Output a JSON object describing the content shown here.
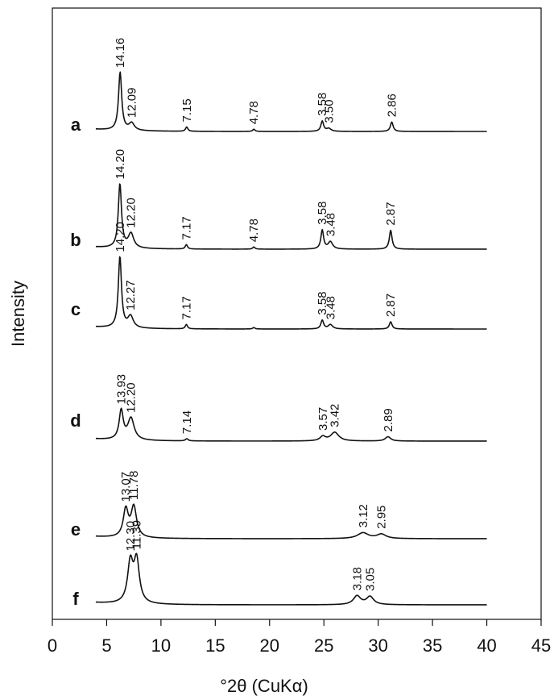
{
  "chart_data": {
    "type": "line",
    "title": "",
    "xlabel": "°2θ (CuKα)",
    "ylabel": "Intensity",
    "xlim": [
      0,
      45
    ],
    "xticks": [
      0,
      5,
      10,
      15,
      20,
      25,
      30,
      35,
      40,
      45
    ],
    "x_range_measured": [
      4,
      40
    ],
    "grid": false,
    "legend": "none",
    "stacked_offset": true,
    "series": [
      {
        "name": "a",
        "baseline": 0,
        "peaks": [
          {
            "two_theta": 6.24,
            "height": 80,
            "width": 0.35,
            "label": "14.16"
          },
          {
            "two_theta": 7.3,
            "height": 10,
            "width": 0.6,
            "label": "12.09"
          },
          {
            "two_theta": 12.37,
            "height": 6,
            "width": 0.25,
            "label": "7.15"
          },
          {
            "two_theta": 18.55,
            "height": 3,
            "width": 0.25,
            "label": "4.78"
          },
          {
            "two_theta": 24.85,
            "height": 14,
            "width": 0.3,
            "label": "3.58"
          },
          {
            "two_theta": 25.45,
            "height": 4,
            "width": 0.5,
            "label": "3.50"
          },
          {
            "two_theta": 31.25,
            "height": 13,
            "width": 0.3,
            "label": "2.86"
          }
        ]
      },
      {
        "name": "b",
        "baseline": 0,
        "peaks": [
          {
            "two_theta": 6.22,
            "height": 88,
            "width": 0.35,
            "label": "14.20"
          },
          {
            "two_theta": 7.24,
            "height": 20,
            "width": 0.6,
            "label": "12.20"
          },
          {
            "two_theta": 12.34,
            "height": 6,
            "width": 0.25,
            "label": "7.17"
          },
          {
            "two_theta": 18.55,
            "height": 3,
            "width": 0.25,
            "label": "4.78"
          },
          {
            "two_theta": 24.85,
            "height": 26,
            "width": 0.3,
            "label": "3.58"
          },
          {
            "two_theta": 25.6,
            "height": 10,
            "width": 0.5,
            "label": "3.48"
          },
          {
            "two_theta": 31.15,
            "height": 26,
            "width": 0.3,
            "label": "2.87"
          }
        ]
      },
      {
        "name": "c",
        "baseline": 0,
        "peaks": [
          {
            "two_theta": 6.22,
            "height": 98,
            "width": 0.35,
            "label": "14.20"
          },
          {
            "two_theta": 7.2,
            "height": 16,
            "width": 0.6,
            "label": "12.27"
          },
          {
            "two_theta": 12.34,
            "height": 6,
            "width": 0.25,
            "label": "7.17"
          },
          {
            "two_theta": 18.55,
            "height": 2,
            "width": 0.25,
            "label": ""
          },
          {
            "two_theta": 24.85,
            "height": 12,
            "width": 0.3,
            "label": "3.58"
          },
          {
            "two_theta": 25.6,
            "height": 6,
            "width": 0.5,
            "label": "3.48"
          },
          {
            "two_theta": 31.15,
            "height": 10,
            "width": 0.3,
            "label": "2.87"
          }
        ]
      },
      {
        "name": "d",
        "baseline": 0,
        "peaks": [
          {
            "two_theta": 6.34,
            "height": 40,
            "width": 0.45,
            "label": "13.93"
          },
          {
            "two_theta": 7.24,
            "height": 30,
            "width": 0.7,
            "label": "12.20"
          },
          {
            "two_theta": 12.38,
            "height": 3,
            "width": 0.3,
            "label": "7.14"
          },
          {
            "two_theta": 24.9,
            "height": 6,
            "width": 0.6,
            "label": "3.57"
          },
          {
            "two_theta": 26.0,
            "height": 12,
            "width": 0.9,
            "label": "3.42"
          },
          {
            "two_theta": 30.9,
            "height": 6,
            "width": 0.6,
            "label": "2.89"
          }
        ]
      },
      {
        "name": "e",
        "baseline": 0,
        "peaks": [
          {
            "two_theta": 6.76,
            "height": 38,
            "width": 0.55,
            "label": "13.07"
          },
          {
            "two_theta": 7.5,
            "height": 42,
            "width": 0.6,
            "label": "11.78"
          },
          {
            "two_theta": 28.6,
            "height": 8,
            "width": 1.2,
            "label": "3.12"
          },
          {
            "two_theta": 30.3,
            "height": 6,
            "width": 1.0,
            "label": "2.95"
          }
        ]
      },
      {
        "name": "f",
        "baseline": 0,
        "peaks": [
          {
            "two_theta": 7.18,
            "height": 55,
            "width": 0.6,
            "label": "12.30"
          },
          {
            "two_theta": 7.76,
            "height": 58,
            "width": 0.6,
            "label": "11.39"
          },
          {
            "two_theta": 28.05,
            "height": 12,
            "width": 0.8,
            "label": "3.18"
          },
          {
            "two_theta": 29.25,
            "height": 11,
            "width": 0.8,
            "label": "3.05"
          }
        ]
      }
    ]
  }
}
